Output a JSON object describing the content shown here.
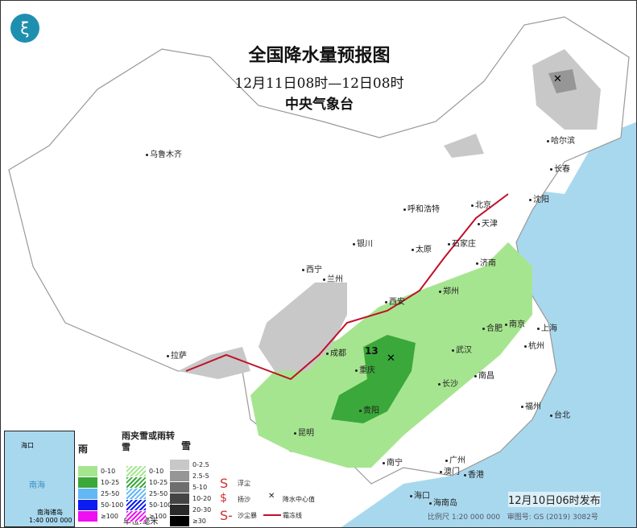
{
  "header": {
    "title": "全国降水量预报图",
    "period": "12月11日08时—12日08时",
    "issuer": "中央气象台",
    "logo_icon": "cma-logo"
  },
  "colors": {
    "sea": "#a8d8ee",
    "land": "#ffffff",
    "rain_0_10": "#a6e58f",
    "rain_10_25": "#3aa83a",
    "rain_25_50": "#62b8f5",
    "rain_50_100": "#0a1cf0",
    "rain_100": "#f00ff0",
    "snow_light": "#c8c8c8",
    "snow_mid": "#969696",
    "front": "#c0102a"
  },
  "map": {
    "cities": [
      "乌鲁木齐",
      "哈尔滨",
      "长春",
      "沈阳",
      "北京",
      "天津",
      "呼和浩特",
      "石家庄",
      "太原",
      "济南",
      "银川",
      "兰州",
      "西宁",
      "郑州",
      "西安",
      "合肥",
      "南京",
      "上海",
      "杭州",
      "武汉",
      "成都",
      "重庆",
      "长沙",
      "南昌",
      "拉萨",
      "贵阳",
      "昆明",
      "福州",
      "台北",
      "南宁",
      "广州",
      "香港",
      "澳门",
      "海口",
      "海南岛"
    ],
    "center_value": "13",
    "center_marker": "precip-center-x"
  },
  "inset": {
    "labels": [
      "海口",
      "南海",
      "南海诸岛",
      "1:40 000 000"
    ]
  },
  "legend": {
    "rain": {
      "title": "雨",
      "items": [
        "0-10",
        "10-25",
        "25-50",
        "50-100",
        "≥100"
      ]
    },
    "mixed": {
      "title": "雨夹雪或雨转雪",
      "items": [
        "0-10",
        "10-25",
        "25-50",
        "50-100",
        "≥100"
      ]
    },
    "snow": {
      "title": "雪",
      "items": [
        "0-2.5",
        "2.5-5",
        "5-10",
        "10-20",
        "20-30",
        "≥30"
      ]
    },
    "unit": "单位:毫米",
    "symbols": [
      {
        "icon": "floating-dust",
        "label": "浮尘"
      },
      {
        "icon": "blowing-sand",
        "label": "扬沙"
      },
      {
        "icon": "sandstorm",
        "label": "沙尘暴"
      },
      {
        "icon": "precip-center",
        "label": "降水中心值"
      },
      {
        "icon": "shear-line",
        "label": "霜冻线"
      }
    ]
  },
  "footer": {
    "issued": "12月10日06时发布",
    "scale": "比例尺 1:20 000 000",
    "review": "审图号: GS (2019) 3082号"
  }
}
